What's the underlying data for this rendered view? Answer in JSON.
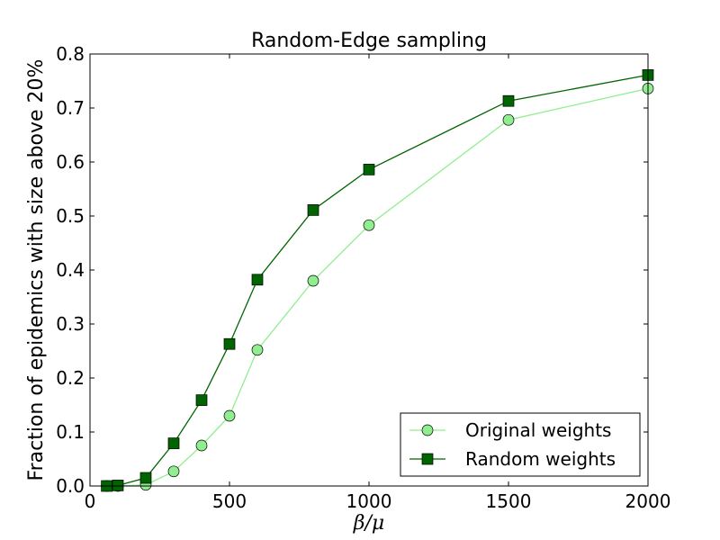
{
  "chart_data": {
    "type": "line",
    "title": "Random-Edge sampling",
    "xlabel": "β/μ",
    "ylabel": "Fraction of epidemics with size above 20%",
    "xlim": [
      0,
      2000
    ],
    "ylim": [
      0.0,
      0.8
    ],
    "xticks": [
      "0",
      "500",
      "1000",
      "1500",
      "2000"
    ],
    "yticks": [
      "0.0",
      "0.1",
      "0.2",
      "0.3",
      "0.4",
      "0.5",
      "0.6",
      "0.7",
      "0.8"
    ],
    "grid": false,
    "legend_position": "lower-right",
    "series": [
      {
        "name": "Original weights",
        "marker": "circle",
        "line_color": "#90ee90",
        "marker_fill": "#90ee90",
        "x": [
          60,
          100,
          200,
          300,
          400,
          500,
          600,
          800,
          1000,
          1500,
          2000
        ],
        "y": [
          0.0,
          0.0,
          0.002,
          0.027,
          0.075,
          0.13,
          0.252,
          0.38,
          0.483,
          0.678,
          0.736
        ]
      },
      {
        "name": "Random weights",
        "marker": "square",
        "line_color": "#006400",
        "marker_fill": "#006400",
        "x": [
          60,
          100,
          200,
          300,
          400,
          500,
          600,
          800,
          1000,
          1500,
          2000
        ],
        "y": [
          0.0,
          0.001,
          0.015,
          0.079,
          0.159,
          0.263,
          0.382,
          0.511,
          0.586,
          0.713,
          0.761
        ]
      }
    ]
  }
}
